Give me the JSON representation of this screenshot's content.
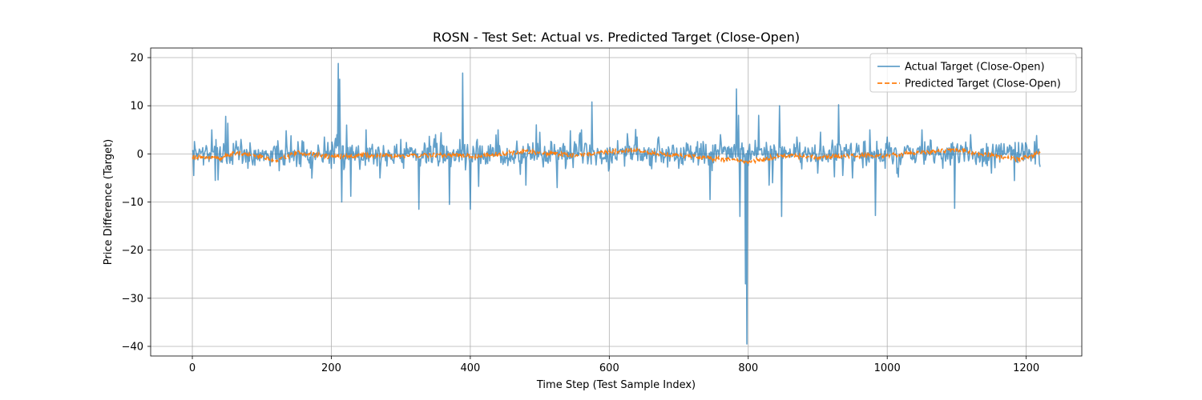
{
  "chart_data": {
    "type": "line",
    "title": "ROSN - Test Set: Actual vs. Predicted Target (Close-Open)",
    "xlabel": "Time Step (Test Sample Index)",
    "ylabel": "Price Difference (Target)",
    "xlim": [
      -60,
      1280
    ],
    "ylim": [
      -42,
      22
    ],
    "xticks": [
      0,
      200,
      400,
      600,
      800,
      1000,
      1200
    ],
    "yticks": [
      -40,
      -30,
      -20,
      -10,
      0,
      10,
      20
    ],
    "xtick_labels": [
      "0",
      "200",
      "400",
      "600",
      "800",
      "1000",
      "1200"
    ],
    "ytick_labels": [
      "−40",
      "−30",
      "−20",
      "−10",
      "0",
      "10",
      "20"
    ],
    "grid": true,
    "legend_position": "top-right",
    "series": [
      {
        "name": "Actual Target (Close-Open)",
        "color": "#1f77b4",
        "alpha": 0.7,
        "style": "solid",
        "n_points": 1221,
        "key_points": [
          [
            0,
            0.5
          ],
          [
            10,
            1.0
          ],
          [
            28,
            5.0
          ],
          [
            33,
            -5.5
          ],
          [
            48,
            7.8
          ],
          [
            50,
            -2.0
          ],
          [
            70,
            3.0
          ],
          [
            80,
            -3.0
          ],
          [
            125,
            -3.5
          ],
          [
            135,
            4.8
          ],
          [
            160,
            2.5
          ],
          [
            190,
            3.5
          ],
          [
            200,
            -3.0
          ],
          [
            208,
            4.0
          ],
          [
            210,
            18.8
          ],
          [
            212,
            15.5
          ],
          [
            215,
            -10.0
          ],
          [
            222,
            6.0
          ],
          [
            228,
            -8.8
          ],
          [
            250,
            5.0
          ],
          [
            270,
            -5.0
          ],
          [
            300,
            3.0
          ],
          [
            326,
            -11.5
          ],
          [
            350,
            4.0
          ],
          [
            370,
            -10.5
          ],
          [
            385,
            3.0
          ],
          [
            389,
            16.8
          ],
          [
            400,
            -11.5
          ],
          [
            410,
            3.0
          ],
          [
            440,
            5.0
          ],
          [
            480,
            -6.5
          ],
          [
            500,
            4.5
          ],
          [
            525,
            -7.0
          ],
          [
            560,
            5.0
          ],
          [
            575,
            10.8
          ],
          [
            600,
            -3.0
          ],
          [
            640,
            3.5
          ],
          [
            700,
            -3.0
          ],
          [
            745,
            -9.5
          ],
          [
            760,
            4.0
          ],
          [
            783,
            13.5
          ],
          [
            786,
            8.0
          ],
          [
            788,
            -13.0
          ],
          [
            796,
            -27.0
          ],
          [
            798,
            -39.5
          ],
          [
            802,
            2.0
          ],
          [
            815,
            8.0
          ],
          [
            830,
            -6.5
          ],
          [
            835,
            -6.0
          ],
          [
            845,
            10.0
          ],
          [
            848,
            -13.0
          ],
          [
            870,
            3.5
          ],
          [
            900,
            -4.0
          ],
          [
            930,
            10.2
          ],
          [
            950,
            -5.0
          ],
          [
            975,
            5.0
          ],
          [
            983,
            -12.8
          ],
          [
            1000,
            3.5
          ],
          [
            1050,
            5.0
          ],
          [
            1080,
            -3.0
          ],
          [
            1097,
            -11.3
          ],
          [
            1120,
            4.0
          ],
          [
            1150,
            -4.0
          ],
          [
            1200,
            2.0
          ],
          [
            1215,
            3.8
          ],
          [
            1220,
            -2.7
          ]
        ]
      },
      {
        "name": "Predicted Target (Close-Open)",
        "color": "#ff7f0e",
        "style": "dashed",
        "n_points": 1221,
        "key_points": [
          [
            0,
            -0.5
          ],
          [
            40,
            -1.0
          ],
          [
            60,
            0.2
          ],
          [
            100,
            -0.5
          ],
          [
            120,
            -1.5
          ],
          [
            150,
            0.3
          ],
          [
            200,
            -0.6
          ],
          [
            250,
            -0.3
          ],
          [
            300,
            -0.4
          ],
          [
            350,
            -0.2
          ],
          [
            400,
            -0.5
          ],
          [
            480,
            0.5
          ],
          [
            550,
            -0.3
          ],
          [
            630,
            0.8
          ],
          [
            700,
            -0.4
          ],
          [
            800,
            -1.6
          ],
          [
            850,
            -0.3
          ],
          [
            900,
            -0.8
          ],
          [
            950,
            -0.4
          ],
          [
            1000,
            -0.3
          ],
          [
            1100,
            0.8
          ],
          [
            1190,
            -1.2
          ],
          [
            1220,
            0.3
          ]
        ]
      }
    ]
  }
}
